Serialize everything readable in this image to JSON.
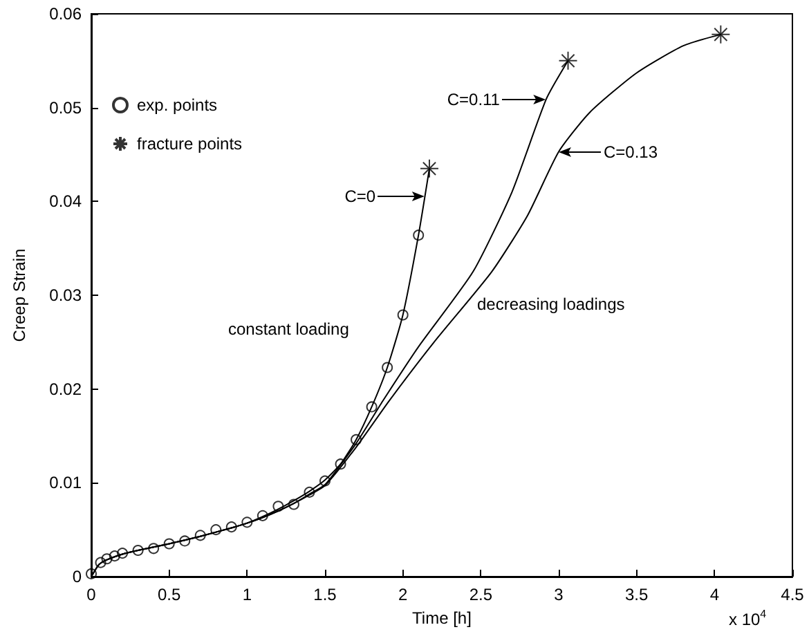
{
  "chart_data": {
    "type": "line",
    "xlabel": "Time [h]",
    "ylabel": "Creep Strain",
    "xlim": [
      0,
      4.5
    ],
    "xticks": [
      0,
      0.5,
      1,
      1.5,
      2,
      2.5,
      3,
      3.5,
      4,
      4.5
    ],
    "ylim": [
      0,
      0.06
    ],
    "yticks": [
      0,
      0.01,
      0.02,
      0.03,
      0.04,
      0.05,
      0.06
    ],
    "grid": false,
    "legend": "top left",
    "series": [
      {
        "name": "exp. points",
        "type": "scatter",
        "marker": "circle",
        "color": "#000000",
        "x": [
          0,
          0.06,
          0.1,
          0.15,
          0.2,
          0.3,
          0.4,
          0.5,
          0.6,
          0.7,
          0.8,
          0.9,
          1.0,
          1.1,
          1.2,
          1.3,
          1.4,
          1.5,
          1.6,
          1.7,
          1.8,
          1.9,
          2.0,
          2.1
        ],
        "values": [
          0.0003,
          0.0015,
          0.0019,
          0.0022,
          0.0025,
          0.0028,
          0.003,
          0.0035,
          0.0038,
          0.0044,
          0.005,
          0.0053,
          0.0058,
          0.0065,
          0.0075,
          0.0077,
          0.009,
          0.0102,
          0.012,
          0.0146,
          0.0181,
          0.0223,
          0.0279,
          0.0364
        ]
      },
      {
        "name": "fracture points",
        "type": "scatter",
        "marker": "cross",
        "color": "#000000",
        "x": [
          2.17,
          3.06,
          4.04
        ],
        "values": [
          0.0435,
          0.055,
          0.0578
        ]
      },
      {
        "marker": "none",
        "color": "#000000",
        "x": [
          0,
          0.05,
          0.1,
          0.2,
          0.3,
          0.5,
          0.7,
          0.9,
          1.0,
          1.1,
          1.2,
          1.3,
          1.4,
          1.5,
          1.6,
          1.7,
          1.8,
          1.9,
          2.0,
          2.1,
          2.17
        ],
        "values": [
          0,
          0.0013,
          0.0018,
          0.0024,
          0.0028,
          0.0035,
          0.0043,
          0.0052,
          0.0057,
          0.0064,
          0.0072,
          0.0081,
          0.0091,
          0.0103,
          0.012,
          0.0146,
          0.0181,
          0.0223,
          0.0279,
          0.0364,
          0.0435
        ]
      },
      {
        "marker": "none",
        "color": "#000000",
        "x": [
          0,
          0.05,
          0.1,
          0.2,
          0.3,
          0.5,
          0.7,
          0.9,
          1.0,
          1.1,
          1.2,
          1.3,
          1.4,
          1.5,
          1.7,
          1.87,
          2.1,
          2.45,
          2.7,
          2.92,
          3.06
        ],
        "values": [
          0,
          0.0013,
          0.0018,
          0.0024,
          0.0028,
          0.0035,
          0.0043,
          0.0052,
          0.0057,
          0.0063,
          0.007,
          0.0078,
          0.0088,
          0.0098,
          0.0142,
          0.0187,
          0.0245,
          0.0325,
          0.041,
          0.0509,
          0.055
        ]
      },
      {
        "marker": "none",
        "color": "#000000",
        "x": [
          0,
          0.05,
          0.1,
          0.2,
          0.3,
          0.5,
          0.7,
          0.9,
          1.0,
          1.1,
          1.2,
          1.3,
          1.4,
          1.5,
          1.7,
          1.91,
          2.2,
          2.57,
          2.8,
          3.0,
          3.2,
          3.5,
          3.8,
          4.04
        ],
        "values": [
          0,
          0.0013,
          0.0018,
          0.0024,
          0.0028,
          0.0035,
          0.0043,
          0.0052,
          0.0057,
          0.0063,
          0.007,
          0.0078,
          0.0087,
          0.0097,
          0.0138,
          0.0187,
          0.025,
          0.0325,
          0.0385,
          0.0453,
          0.0495,
          0.0537,
          0.0566,
          0.0578
        ]
      }
    ],
    "annotations": [
      {
        "text": "C=0",
        "x": 2.14,
        "y": 0.0405
      },
      {
        "text": "C=0.11",
        "x": 2.92,
        "y": 0.0509
      },
      {
        "text": "C=0.13",
        "x": 3.0,
        "y": 0.0453
      },
      "constant loading",
      "decreasing loadings",
      "x 10$^{4}$"
    ]
  }
}
